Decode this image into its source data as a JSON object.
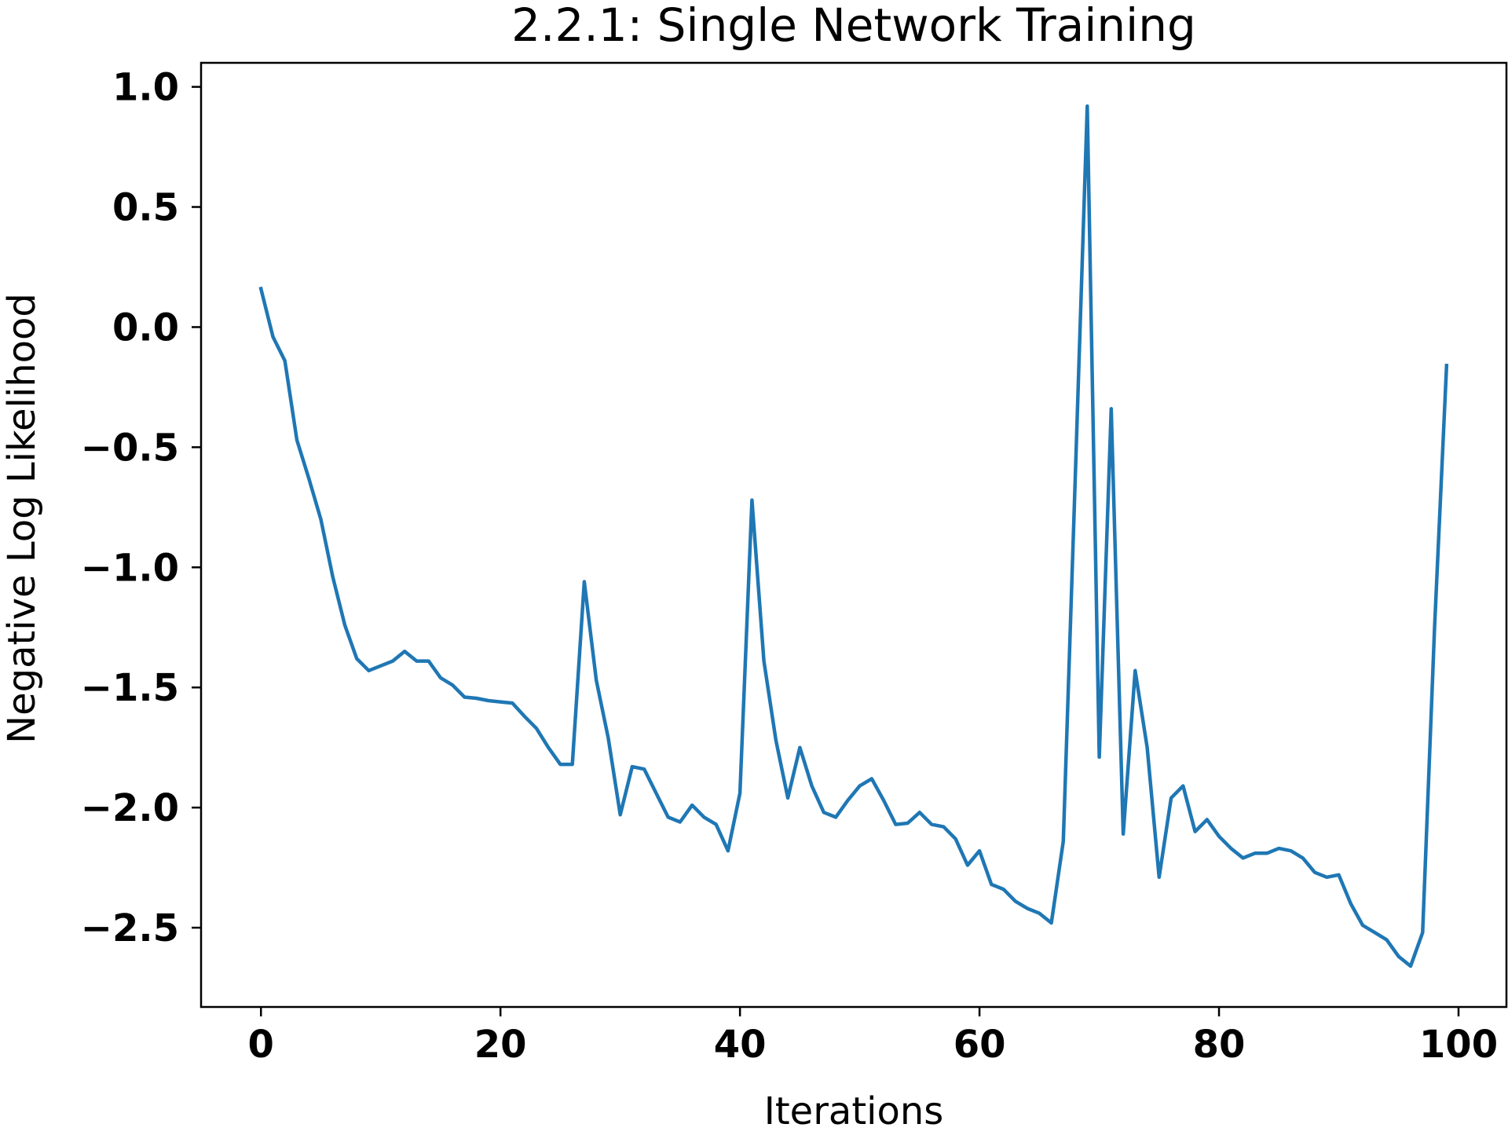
{
  "chart_data": {
    "type": "line",
    "title": "2.2.1: Single Network Training",
    "xlabel": "Iterations",
    "ylabel": "Negative Log Likelihood",
    "xlim": [
      -5,
      104
    ],
    "ylim": [
      -2.83,
      1.1
    ],
    "x_ticks": [
      0,
      20,
      40,
      60,
      80,
      100
    ],
    "y_ticks": [
      1.0,
      0.5,
      0.0,
      -0.5,
      -1.0,
      -1.5,
      -2.0,
      -2.5
    ],
    "x_tick_labels": [
      "0",
      "20",
      "40",
      "60",
      "80",
      "100"
    ],
    "y_tick_labels": [
      "1.0",
      "0.5",
      "0.0",
      "−0.5",
      "−1.0",
      "−1.5",
      "−2.0",
      "−2.5"
    ],
    "grid": false,
    "legend": "none",
    "series": [
      {
        "color": "#1f77b4",
        "x": [
          0,
          1,
          2,
          3,
          4,
          5,
          6,
          7,
          8,
          9,
          10,
          11,
          12,
          13,
          14,
          15,
          16,
          17,
          18,
          19,
          20,
          21,
          22,
          23,
          24,
          25,
          26,
          27,
          28,
          29,
          30,
          31,
          32,
          33,
          34,
          35,
          36,
          37,
          38,
          39,
          40,
          41,
          42,
          43,
          44,
          45,
          46,
          47,
          48,
          49,
          50,
          51,
          52,
          53,
          54,
          55,
          56,
          57,
          58,
          59,
          60,
          61,
          62,
          63,
          64,
          65,
          66,
          67,
          68,
          69,
          70,
          71,
          72,
          73,
          74,
          75,
          76,
          77,
          78,
          79,
          80,
          81,
          82,
          83,
          84,
          85,
          86,
          87,
          88,
          89,
          90,
          91,
          92,
          93,
          94,
          95,
          96,
          97,
          98,
          99
        ],
        "values": [
          0.16,
          -0.04,
          -0.14,
          -0.47,
          -0.63,
          -0.8,
          -1.04,
          -1.24,
          -1.38,
          -1.43,
          -1.41,
          -1.39,
          -1.35,
          -1.39,
          -1.39,
          -1.46,
          -1.49,
          -1.54,
          -1.545,
          -1.555,
          -1.56,
          -1.565,
          -1.62,
          -1.67,
          -1.75,
          -1.82,
          -1.82,
          -1.06,
          -1.47,
          -1.71,
          -2.03,
          -1.83,
          -1.84,
          -1.94,
          -2.04,
          -2.06,
          -1.99,
          -2.04,
          -2.07,
          -2.18,
          -1.94,
          -0.72,
          -1.39,
          -1.72,
          -1.96,
          -1.75,
          -1.91,
          -2.02,
          -2.04,
          -1.97,
          -1.91,
          -1.88,
          -1.97,
          -2.07,
          -2.065,
          -2.02,
          -2.07,
          -2.08,
          -2.13,
          -2.24,
          -2.18,
          -2.32,
          -2.34,
          -2.39,
          -2.42,
          -2.44,
          -2.48,
          -2.14,
          -0.62,
          0.92,
          -1.79,
          -0.34,
          -2.11,
          -1.43,
          -1.75,
          -2.29,
          -1.96,
          -1.91,
          -2.1,
          -2.05,
          -2.12,
          -2.17,
          -2.21,
          -2.19,
          -2.19,
          -2.17,
          -2.18,
          -2.21,
          -2.27,
          -2.29,
          -2.28,
          -2.4,
          -2.49,
          -2.52,
          -2.55,
          -2.62,
          -2.66,
          -2.52,
          -1.25,
          -0.16
        ]
      }
    ]
  }
}
